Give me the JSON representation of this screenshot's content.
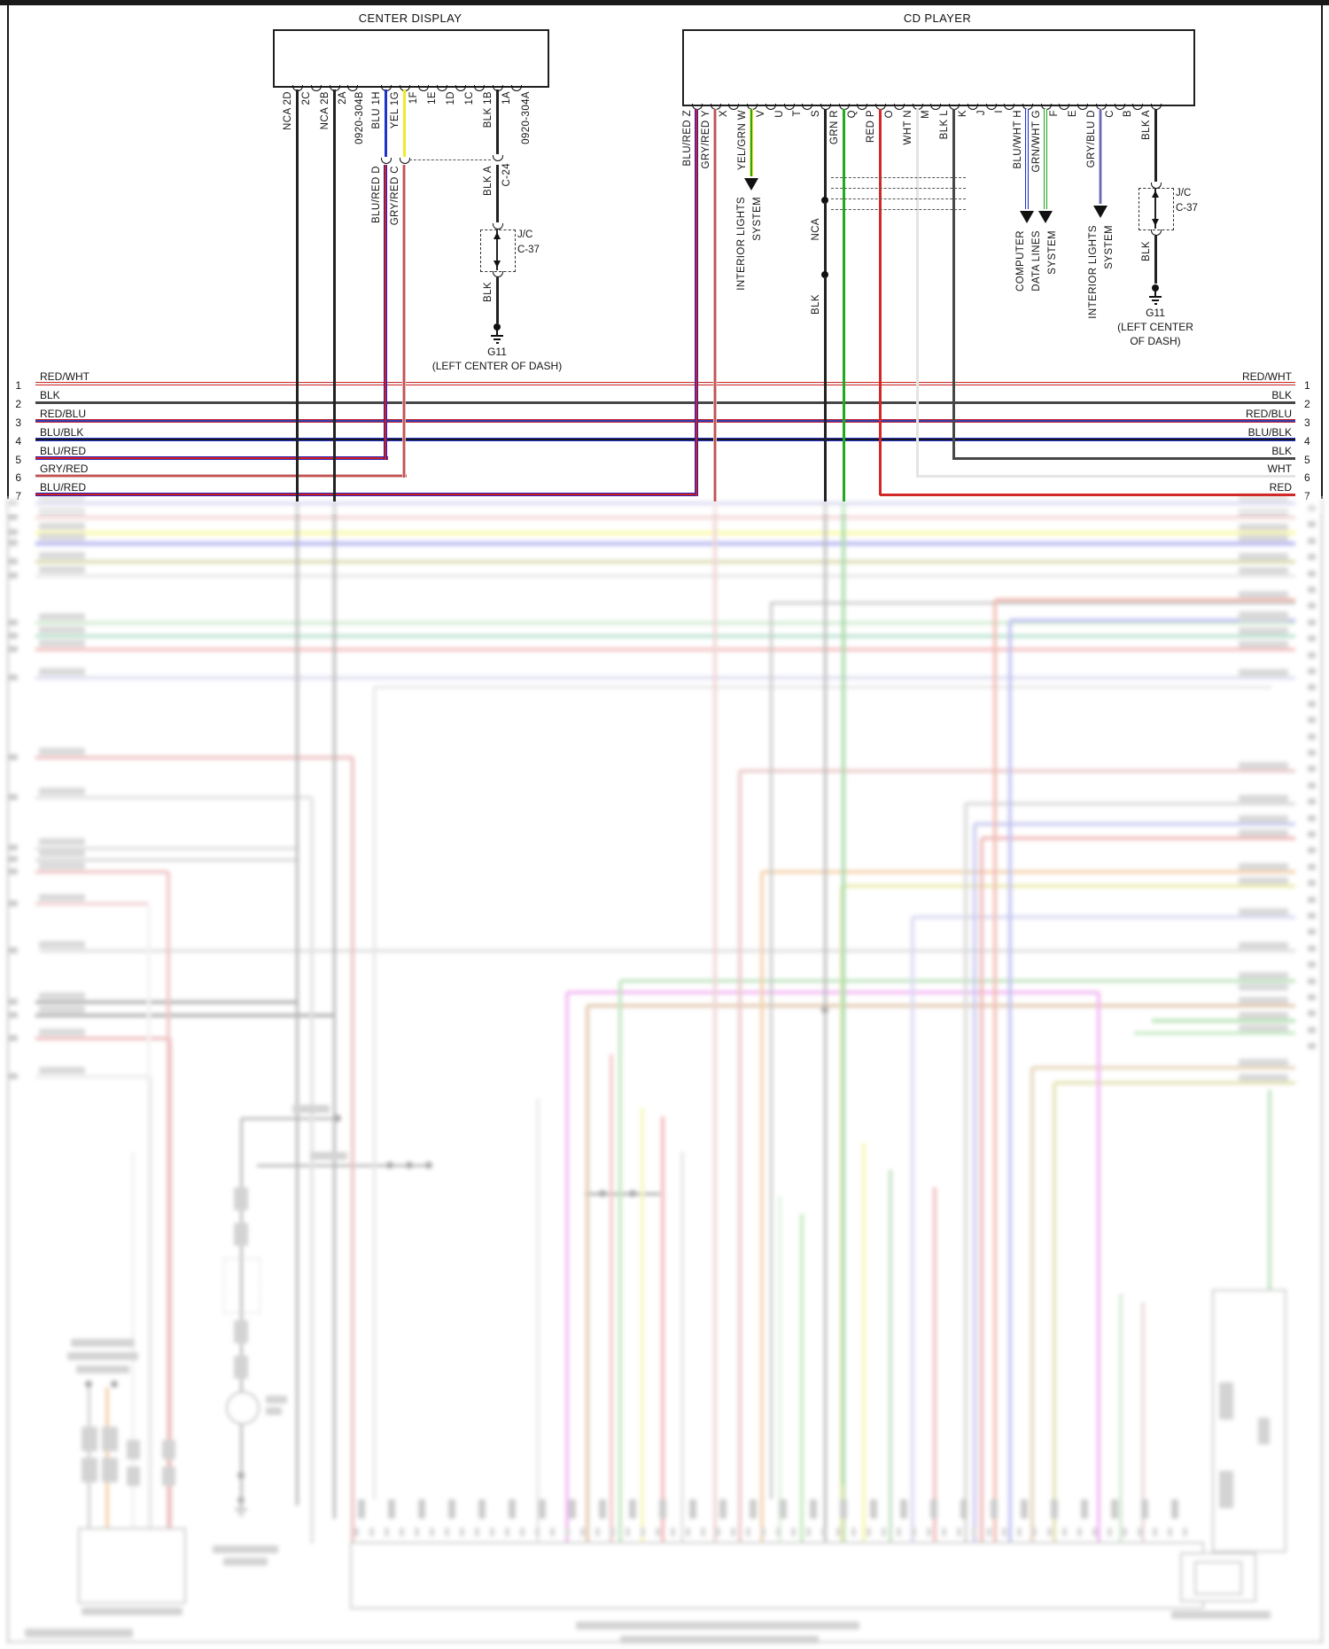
{
  "center_display": {
    "title": "CENTER DISPLAY",
    "connector_id_left": "0920-304B",
    "connector_id_right": "0920-304A",
    "pins": [
      {
        "id": "2D",
        "wire": "NCA"
      },
      {
        "id": "2C",
        "wire": ""
      },
      {
        "id": "2B",
        "wire": "NCA"
      },
      {
        "id": "2A",
        "wire": ""
      },
      {
        "id": "1H",
        "wire": "BLU"
      },
      {
        "id": "1G",
        "wire": "YEL"
      },
      {
        "id": "1F",
        "wire": ""
      },
      {
        "id": "1E",
        "wire": ""
      },
      {
        "id": "1D",
        "wire": ""
      },
      {
        "id": "1C",
        "wire": ""
      },
      {
        "id": "1B",
        "wire": "BLK"
      },
      {
        "id": "1A",
        "wire": ""
      }
    ],
    "c24": {
      "id": "C-24",
      "drops": [
        {
          "pin": "D",
          "wire": "BLU/RED"
        },
        {
          "pin": "C",
          "wire": "GRY/RED"
        },
        {
          "pin": "A",
          "wire": "BLK"
        }
      ]
    },
    "jc": {
      "label": "J/C",
      "id": "C-37",
      "wire_below": "BLK"
    },
    "ground": {
      "id": "G11",
      "location": "(LEFT CENTER OF DASH)"
    }
  },
  "cd_player": {
    "title": "CD PLAYER",
    "pins": [
      {
        "id": "Z",
        "wire": "BLU/RED"
      },
      {
        "id": "Y",
        "wire": "GRY/RED"
      },
      {
        "id": "X",
        "wire": ""
      },
      {
        "id": "W",
        "wire": "YEL/GRN"
      },
      {
        "id": "V",
        "wire": ""
      },
      {
        "id": "U",
        "wire": ""
      },
      {
        "id": "T",
        "wire": ""
      },
      {
        "id": "S",
        "wire": ""
      },
      {
        "id": "R",
        "wire": "GRN"
      },
      {
        "id": "Q",
        "wire": ""
      },
      {
        "id": "P",
        "wire": "RED"
      },
      {
        "id": "O",
        "wire": ""
      },
      {
        "id": "N",
        "wire": "WHT"
      },
      {
        "id": "M",
        "wire": ""
      },
      {
        "id": "L",
        "wire": "BLK"
      },
      {
        "id": "K",
        "wire": ""
      },
      {
        "id": "J",
        "wire": ""
      },
      {
        "id": "I",
        "wire": ""
      },
      {
        "id": "H",
        "wire": "BLU/WHT"
      },
      {
        "id": "G",
        "wire": "GRN/WHT"
      },
      {
        "id": "F",
        "wire": ""
      },
      {
        "id": "E",
        "wire": ""
      },
      {
        "id": "D",
        "wire": "GRY/BLU"
      },
      {
        "id": "C",
        "wire": ""
      },
      {
        "id": "B",
        "wire": ""
      },
      {
        "id": "A",
        "wire": "BLK"
      }
    ],
    "s_wire": {
      "upper": "NCA",
      "lower": "BLK"
    },
    "system_labels": [
      {
        "for_pins": "W",
        "cols": [
          "INTERIOR LIGHTS",
          "SYSTEM"
        ]
      },
      {
        "for_pins": "H,G",
        "cols": [
          "COMPUTER",
          "DATA LINES",
          "SYSTEM"
        ]
      },
      {
        "for_pins": "D",
        "cols": [
          "INTERIOR LIGHTS",
          "SYSTEM"
        ]
      }
    ],
    "jc": {
      "label": "J/C",
      "id": "C-37",
      "wire_below": "BLK"
    },
    "ground": {
      "id": "G11",
      "location_lines": [
        "(LEFT CENTER",
        "OF DASH)"
      ]
    }
  },
  "rows": [
    {
      "n": "1",
      "left": "RED/WHT",
      "right": "RED/WHT"
    },
    {
      "n": "2",
      "left": "BLK",
      "right": "BLK"
    },
    {
      "n": "3",
      "left": "RED/BLU",
      "right": "RED/BLU"
    },
    {
      "n": "4",
      "left": "BLU/BLK",
      "right": "BLU/BLK"
    },
    {
      "n": "5",
      "left": "BLU/RED",
      "right": "BLK"
    },
    {
      "n": "6",
      "left": "GRY/RED",
      "right": "WHT"
    },
    {
      "n": "7",
      "left": "BLU/RED",
      "right": "RED"
    }
  ],
  "colors": {
    "red": "#d22828",
    "black_wire": "#474747",
    "dark": "#1a1a1a",
    "blue": "#2233c8",
    "yellow": "#f0ea2a",
    "green": "#1faa1f",
    "white_wire": "#e4e4e4",
    "red_blu_main": "#c02030",
    "red_blu_stripe": "#3040b0",
    "blu_blk_main": "#2233c8",
    "blu_blk_stripe": "#181818",
    "blu_red_main": "#2a22b8",
    "blu_red_stripe": "#d02020",
    "gry_red_main": "#dcb8b8",
    "gry_red_stripe": "#c85050",
    "yel_grn_main": "#f0ea2a",
    "yel_grn_stripe": "#2f9e2f",
    "blu_wht_main": "#2233c8",
    "blu_wht_stripe": "#f6f6f6",
    "grn_wht_main": "#1faa1f",
    "grn_wht_stripe": "#f6f6f6",
    "gry_blu_main": "#c4c4e0",
    "gry_blu_stripe": "#6868b8",
    "red_wht_main": "#d22828",
    "red_wht_stripe": "#f0f0f0"
  }
}
